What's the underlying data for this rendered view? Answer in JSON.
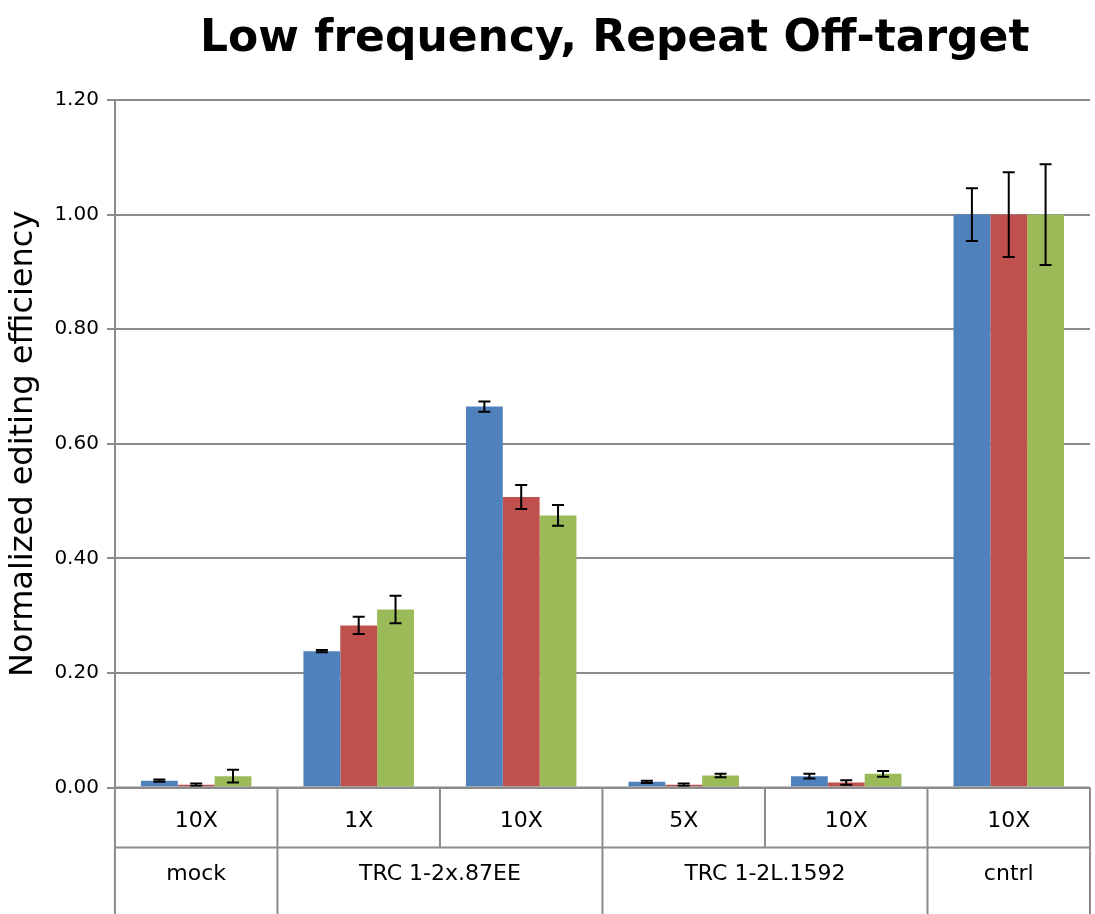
{
  "chart_data": {
    "type": "bar",
    "title": "Low frequency, Repeat Off-target",
    "ylabel": "Normalized editing efficiency",
    "categories": [
      "10X",
      "1X",
      "10X",
      "5X",
      "10X",
      "10X"
    ],
    "series": [
      {
        "color": "#4f81bd",
        "values": [
          0.012,
          0.238,
          0.665,
          0.01,
          0.02,
          1.0
        ],
        "errors": [
          0.002,
          0.002,
          0.009,
          0.002,
          0.004,
          0.046
        ]
      },
      {
        "color": "#c0504d",
        "values": [
          0.005,
          0.283,
          0.507,
          0.005,
          0.009,
          1.0
        ],
        "errors": [
          0.002,
          0.015,
          0.021,
          0.002,
          0.004,
          0.074
        ]
      },
      {
        "color": "#9bbb59",
        "values": [
          0.02,
          0.311,
          0.475,
          0.021,
          0.024,
          1.0
        ],
        "errors": [
          0.011,
          0.024,
          0.018,
          0.003,
          0.005,
          0.088
        ]
      }
    ],
    "annotations": [
      "mock",
      "TRC 1-2x.87EE",
      "TRC 1-2L.1592",
      "cntrl"
    ],
    "ylim": [
      0,
      1.2
    ],
    "yticks": [
      {
        "value": 0,
        "label": "0.00"
      },
      {
        "value": 0.2,
        "label": "0.20"
      },
      {
        "value": 0.4,
        "label": "0.40"
      },
      {
        "value": 0.6,
        "label": "0.60"
      },
      {
        "value": 0.8,
        "label": "0.80"
      },
      {
        "value": 1.0,
        "label": "1.00"
      },
      {
        "value": 1.2,
        "label": "1.20"
      }
    ],
    "grid": "y",
    "legend": false
  }
}
